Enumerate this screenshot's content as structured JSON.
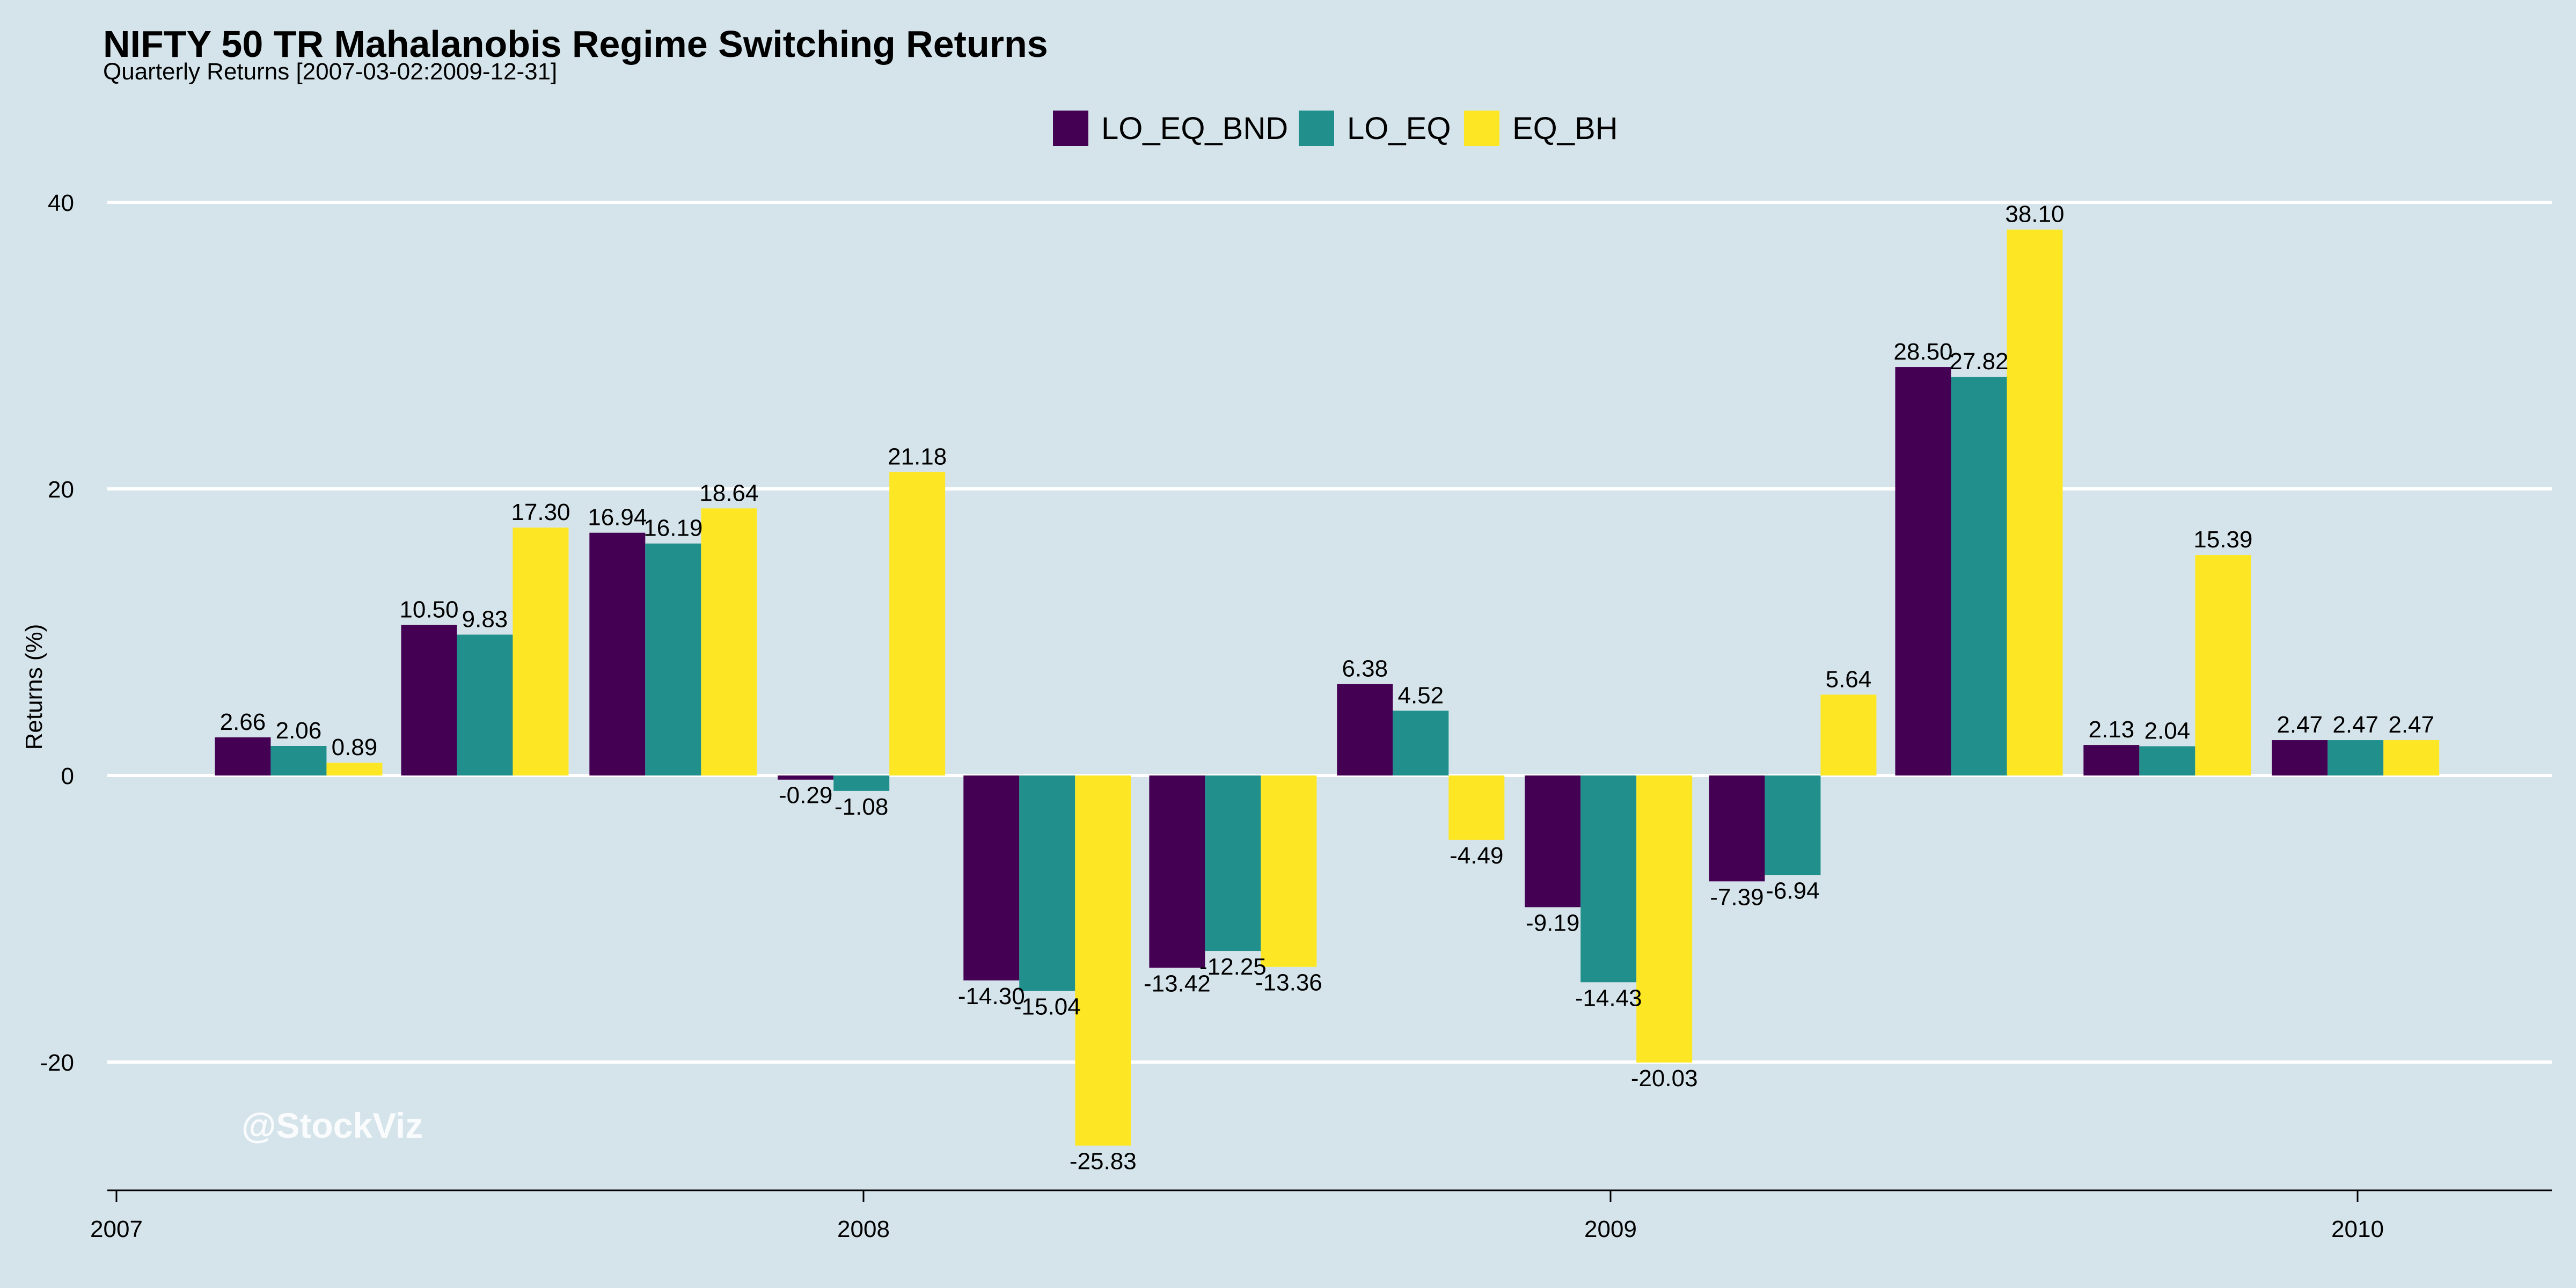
{
  "chart_data": {
    "type": "bar",
    "title": "NIFTY 50 TR Mahalanobis Regime Switching Returns",
    "subtitle": "Quarterly Returns [2007-03-02:2009-12-31]",
    "xlabel": "",
    "ylabel": "Returns (%)",
    "ylim": [
      -28,
      43
    ],
    "y_ticks": [
      40,
      20,
      0,
      -20
    ],
    "x_ticks": [
      "2007",
      "2008",
      "2009",
      "2010"
    ],
    "grid": true,
    "legend_position": "top-center",
    "categories": [
      "2007-03-31",
      "2007-06-30",
      "2007-09-30",
      "2007-12-31",
      "2008-03-31",
      "2008-06-30",
      "2008-09-30",
      "2008-12-31",
      "2009-03-31",
      "2009-06-30",
      "2009-09-30",
      "2009-12-31"
    ],
    "series": [
      {
        "name": "LO_EQ_BND",
        "color": "#440154",
        "values": [
          2.66,
          10.5,
          16.94,
          -0.29,
          -14.3,
          -13.42,
          6.38,
          -9.19,
          -7.39,
          28.5,
          2.13,
          2.47
        ],
        "labels": [
          "2.66",
          "10.50",
          "16.94",
          "-0.29",
          "-14.30",
          "-13.42",
          "6.38",
          "-9.19",
          "-7.39",
          "28.50",
          "2.13",
          "2.47"
        ]
      },
      {
        "name": "LO_EQ",
        "color": "#21908c",
        "values": [
          2.06,
          9.83,
          16.19,
          -1.08,
          -15.04,
          -12.25,
          4.52,
          -14.43,
          -6.94,
          27.82,
          2.04,
          2.47
        ],
        "labels": [
          "2.06",
          "9.83",
          "16.19",
          "-1.08",
          "-15.04",
          "-12.25",
          "4.52",
          "-14.43",
          "-6.94",
          "27.82",
          "2.04",
          "2.47"
        ]
      },
      {
        "name": "EQ_BH",
        "color": "#fde725",
        "values": [
          0.89,
          17.3,
          18.64,
          21.18,
          -25.83,
          -13.36,
          -4.49,
          -20.03,
          5.64,
          38.1,
          15.39,
          2.47
        ],
        "labels": [
          "0.89",
          "17.30",
          "18.64",
          "21.18",
          "-25.83",
          "-13.36",
          "-4.49",
          "-20.03",
          "5.64",
          "38.10",
          "15.39",
          "2.47"
        ]
      }
    ],
    "watermark": "@StockViz"
  },
  "colors": {
    "background": "#d5e4eb",
    "grid": "#ffffff",
    "axis": "#000000"
  }
}
